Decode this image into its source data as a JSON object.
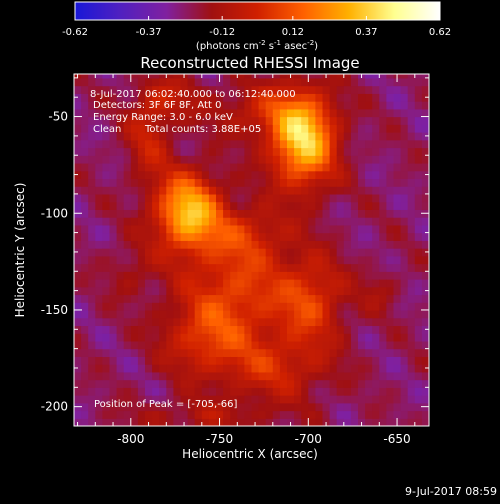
{
  "chart_data": {
    "type": "heatmap",
    "title": "Reconstructed RHESSI Image",
    "xlabel": "Heliocentric X (arcsec)",
    "ylabel": "Heliocentric Y (arcsec)",
    "xlim": [
      -832,
      -632
    ],
    "ylim": [
      -210,
      -28
    ],
    "x_ticks": [
      -800,
      -750,
      -700,
      -650
    ],
    "x_tick_labels": [
      "-800",
      "-750",
      "-700",
      "-650"
    ],
    "y_ticks": [
      -50,
      -100,
      -150,
      -200
    ],
    "y_tick_labels": [
      "-50",
      "-100",
      "-150",
      "-200"
    ],
    "colorbar": {
      "min": -0.62,
      "max": 0.62,
      "ticks": [
        -0.62,
        -0.37,
        -0.12,
        0.12,
        0.37,
        0.62
      ],
      "tick_labels": [
        "-0.62",
        "-0.37",
        "-0.12",
        "0.12",
        "0.37",
        "0.62"
      ],
      "unit_label_parts": [
        "(photons cm",
        "-2",
        " s",
        "-1",
        " asec",
        "-2",
        ")"
      ],
      "colors": [
        "#1818d8",
        "#5020c0",
        "#8020a0",
        "#a01010",
        "#d02000",
        "#ff6000",
        "#ffb000",
        "#ffff90",
        "#ffffff"
      ]
    },
    "peak": {
      "x": -705,
      "y": -66
    },
    "sources": [
      {
        "x": -703,
        "y": -62,
        "sx": 13,
        "sy": 17,
        "amp": 0.62
      },
      {
        "x": -768,
        "y": -99,
        "sx": 13,
        "sy": 14,
        "amp": 0.58
      },
      {
        "x": -727,
        "y": -47,
        "sx": 20,
        "sy": 10,
        "amp": 0.18
      },
      {
        "x": -790,
        "y": -60,
        "sx": 9,
        "sy": 16,
        "amp": 0.2
      },
      {
        "x": -778,
        "y": -40,
        "sx": 12,
        "sy": 8,
        "amp": 0.16
      },
      {
        "x": -740,
        "y": -140,
        "sx": 22,
        "sy": 20,
        "amp": 0.3
      },
      {
        "x": -698,
        "y": -145,
        "sx": 13,
        "sy": 16,
        "amp": 0.28
      },
      {
        "x": -760,
        "y": -165,
        "sx": 16,
        "sy": 13,
        "amp": 0.22
      },
      {
        "x": -720,
        "y": -180,
        "sx": 22,
        "sy": 12,
        "amp": 0.22
      },
      {
        "x": -735,
        "y": -110,
        "sx": 16,
        "sy": 10,
        "amp": 0.18
      },
      {
        "x": -800,
        "y": -130,
        "sx": 10,
        "sy": 10,
        "amp": 0.1
      },
      {
        "x": -660,
        "y": -140,
        "sx": 8,
        "sy": 8,
        "amp": 0.1
      },
      {
        "x": -760,
        "y": -205,
        "sx": 30,
        "sy": 6,
        "amp": 0.12
      }
    ],
    "background": -0.24,
    "annotations": {
      "time_range": "8-Jul-2017 06:02:40.000 to 06:12:40.000",
      "detectors": "Detectors: 3F 6F 8F, Att 0",
      "energy_range": "Energy Range: 3.0 - 6.0 keV",
      "method": "Clean",
      "total_counts": "Total counts: 3.88E+05",
      "peak_position": "Position of Peak = [-705,-66]"
    },
    "footer_date": "9-Jul-2017 08:59"
  }
}
